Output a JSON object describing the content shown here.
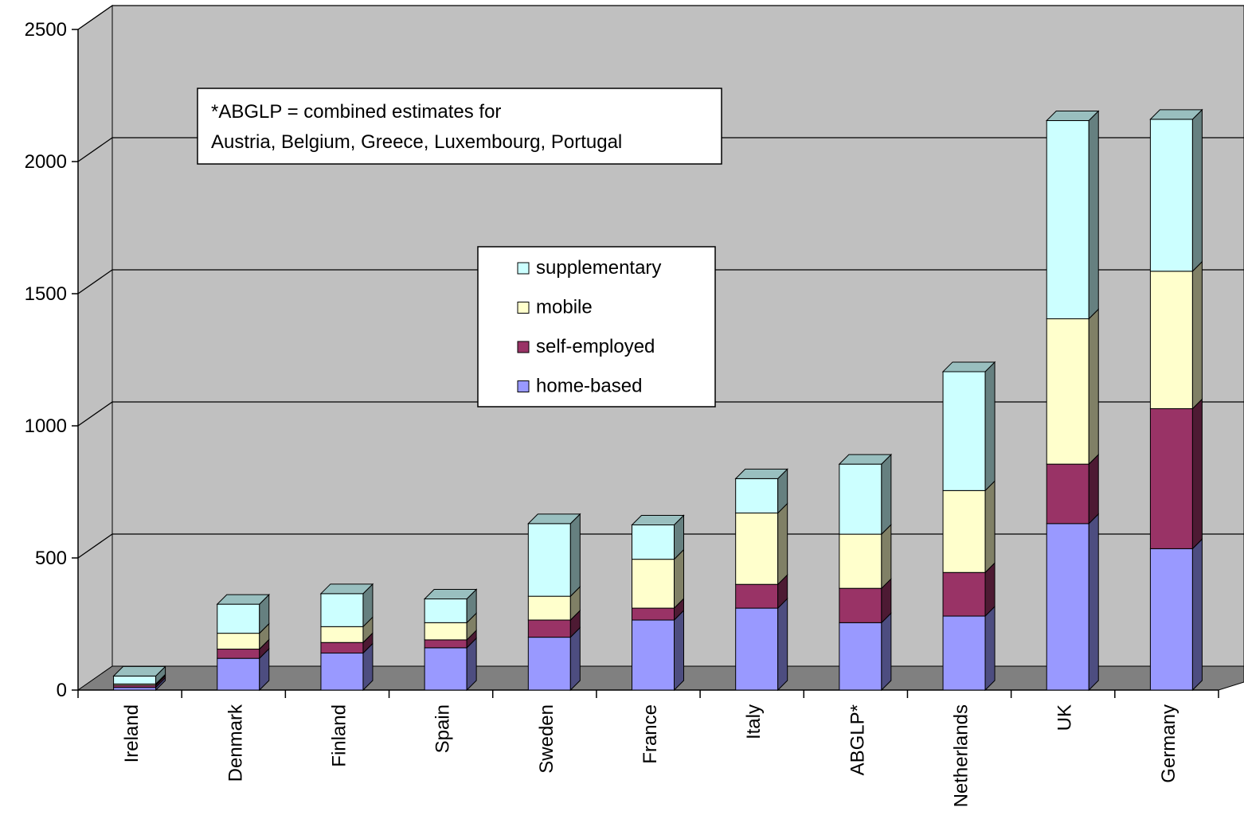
{
  "chart_data": {
    "type": "bar",
    "stacked": true,
    "three_d": true,
    "categories": [
      "Ireland",
      "Denmark",
      "Finland",
      "Spain",
      "Sweden",
      "France",
      "Italy",
      "ABGLP*",
      "Netherlands",
      "UK",
      "Germany"
    ],
    "series": [
      {
        "name": "home-based",
        "color": "#9999ff",
        "values": [
          10,
          120,
          140,
          160,
          200,
          265,
          310,
          255,
          280,
          630,
          535
        ]
      },
      {
        "name": "self-employed",
        "color": "#993366",
        "values": [
          8,
          35,
          40,
          30,
          65,
          45,
          90,
          130,
          165,
          225,
          530
        ]
      },
      {
        "name": "mobile",
        "color": "#ffffcc",
        "values": [
          5,
          60,
          60,
          65,
          90,
          185,
          270,
          205,
          310,
          550,
          520
        ]
      },
      {
        "name": "supplementary",
        "color": "#ccffff",
        "values": [
          30,
          110,
          125,
          90,
          275,
          130,
          130,
          265,
          450,
          750,
          575
        ]
      }
    ],
    "legend_order": [
      "supplementary",
      "mobile",
      "self-employed",
      "home-based"
    ],
    "legend_position": "center",
    "y_ticks": [
      "0",
      "500",
      "1000",
      "1500",
      "2000",
      "2500"
    ],
    "ylim": [
      0,
      2500
    ],
    "grid": true,
    "title": "",
    "xlabel": "",
    "ylabel": "",
    "annotation_lines": [
      "*ABGLP = combined estimates for",
      "Austria, Belgium, Greece, Luxembourg, Portugal"
    ],
    "colors": {
      "wall": "#c0c0c0",
      "floor": "#808080",
      "gridline": "#000000"
    }
  }
}
